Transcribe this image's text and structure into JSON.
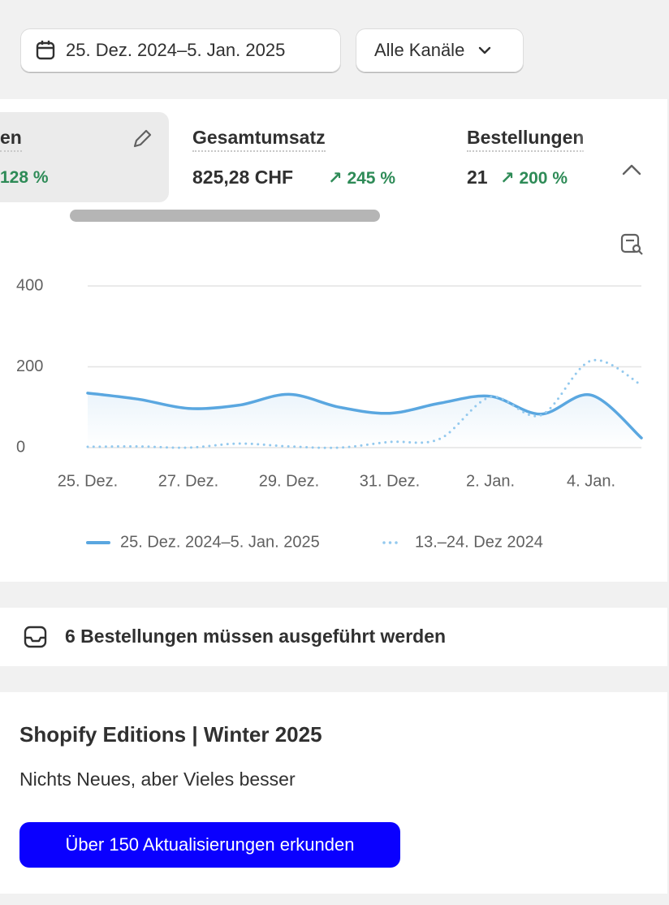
{
  "toolbar": {
    "date_range": "25. Dez. 2024–5. Jan. 2025",
    "channels": "Alle Kanäle"
  },
  "metrics": [
    {
      "label": "en",
      "change": "128 %"
    },
    {
      "label": "Gesamtumsatz",
      "value": "825,28 CHF",
      "change": "245 %"
    },
    {
      "label": "Bestellungen",
      "value": "21",
      "change": "200 %"
    }
  ],
  "chart_data": {
    "type": "line",
    "categories": [
      "25. Dez.",
      null,
      "27. Dez.",
      null,
      "29. Dez.",
      null,
      "31. Dez.",
      null,
      "2. Jan.",
      null,
      "4. Jan.",
      null
    ],
    "series": [
      {
        "name": "25. Dez. 2024–5. Jan. 2025",
        "color": "#5aa7e0",
        "style": "solid",
        "values": [
          135,
          120,
          97,
          105,
          132,
          100,
          85,
          110,
          127,
          83,
          130,
          24
        ]
      },
      {
        "name": "13.–24. Dez 2024",
        "color": "#93c9ee",
        "style": "dotted",
        "values": [
          2,
          3,
          0,
          10,
          3,
          0,
          14,
          22,
          125,
          80,
          215,
          155
        ]
      }
    ],
    "ylim": [
      0,
      400
    ],
    "yticks": [
      0,
      200,
      400
    ],
    "grid": true
  },
  "orders": {
    "text": "6 Bestellungen müssen ausgeführt werden"
  },
  "promo": {
    "title": "Shopify Editions | Winter 2025",
    "subtitle": "Nichts Neues, aber Vieles besser",
    "button": "Über 150 Aktualisierungen erkunden"
  }
}
